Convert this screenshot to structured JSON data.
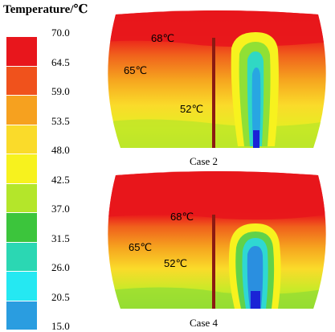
{
  "legend": {
    "title": "Temperature/℃",
    "ticks": [
      "70.0",
      "64.5",
      "59.0",
      "53.5",
      "48.0",
      "42.5",
      "37.0",
      "31.5",
      "26.0",
      "20.5",
      "15.0"
    ],
    "colors": [
      "#e8161c",
      "#f0521c",
      "#f6a11f",
      "#fadb2a",
      "#f7f21e",
      "#b4e62a",
      "#3cc53c",
      "#2bd7b3",
      "#25e8f2",
      "#2a9de0",
      "#1a23d6"
    ]
  },
  "panels": [
    {
      "caption": "Case 2",
      "labels": {
        "top": "68℃",
        "mid": "65℃",
        "low": "52℃"
      }
    },
    {
      "caption": "Case 4",
      "labels": {
        "top": "68℃",
        "mid": "65℃",
        "low": "52℃"
      }
    }
  ]
}
